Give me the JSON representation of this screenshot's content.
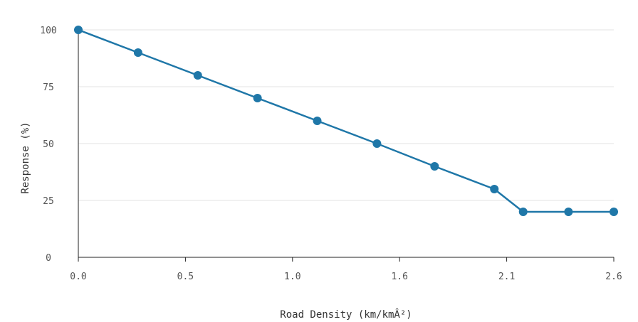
{
  "chart_data": {
    "type": "line",
    "xlabel": "Road Density (km/kmÂ²)",
    "ylabel": "Response (%)",
    "x_tick_labels": [
      "0.0",
      "0.5",
      "1.0",
      "1.6",
      "2.1",
      "2.6"
    ],
    "y_ticks": [
      0,
      25,
      50,
      75,
      100
    ],
    "xlim": [
      0,
      2.6
    ],
    "ylim": [
      0,
      100
    ],
    "grid": "horizontal",
    "colors": {
      "series": "#1f77a8"
    },
    "series": [
      {
        "x": [
          0.0,
          0.29,
          0.58,
          0.87,
          1.16,
          1.45,
          1.73,
          2.02,
          2.16,
          2.38,
          2.6
        ],
        "values": [
          100,
          90,
          80,
          70,
          60,
          50,
          40,
          30,
          20,
          20,
          20
        ]
      }
    ]
  }
}
